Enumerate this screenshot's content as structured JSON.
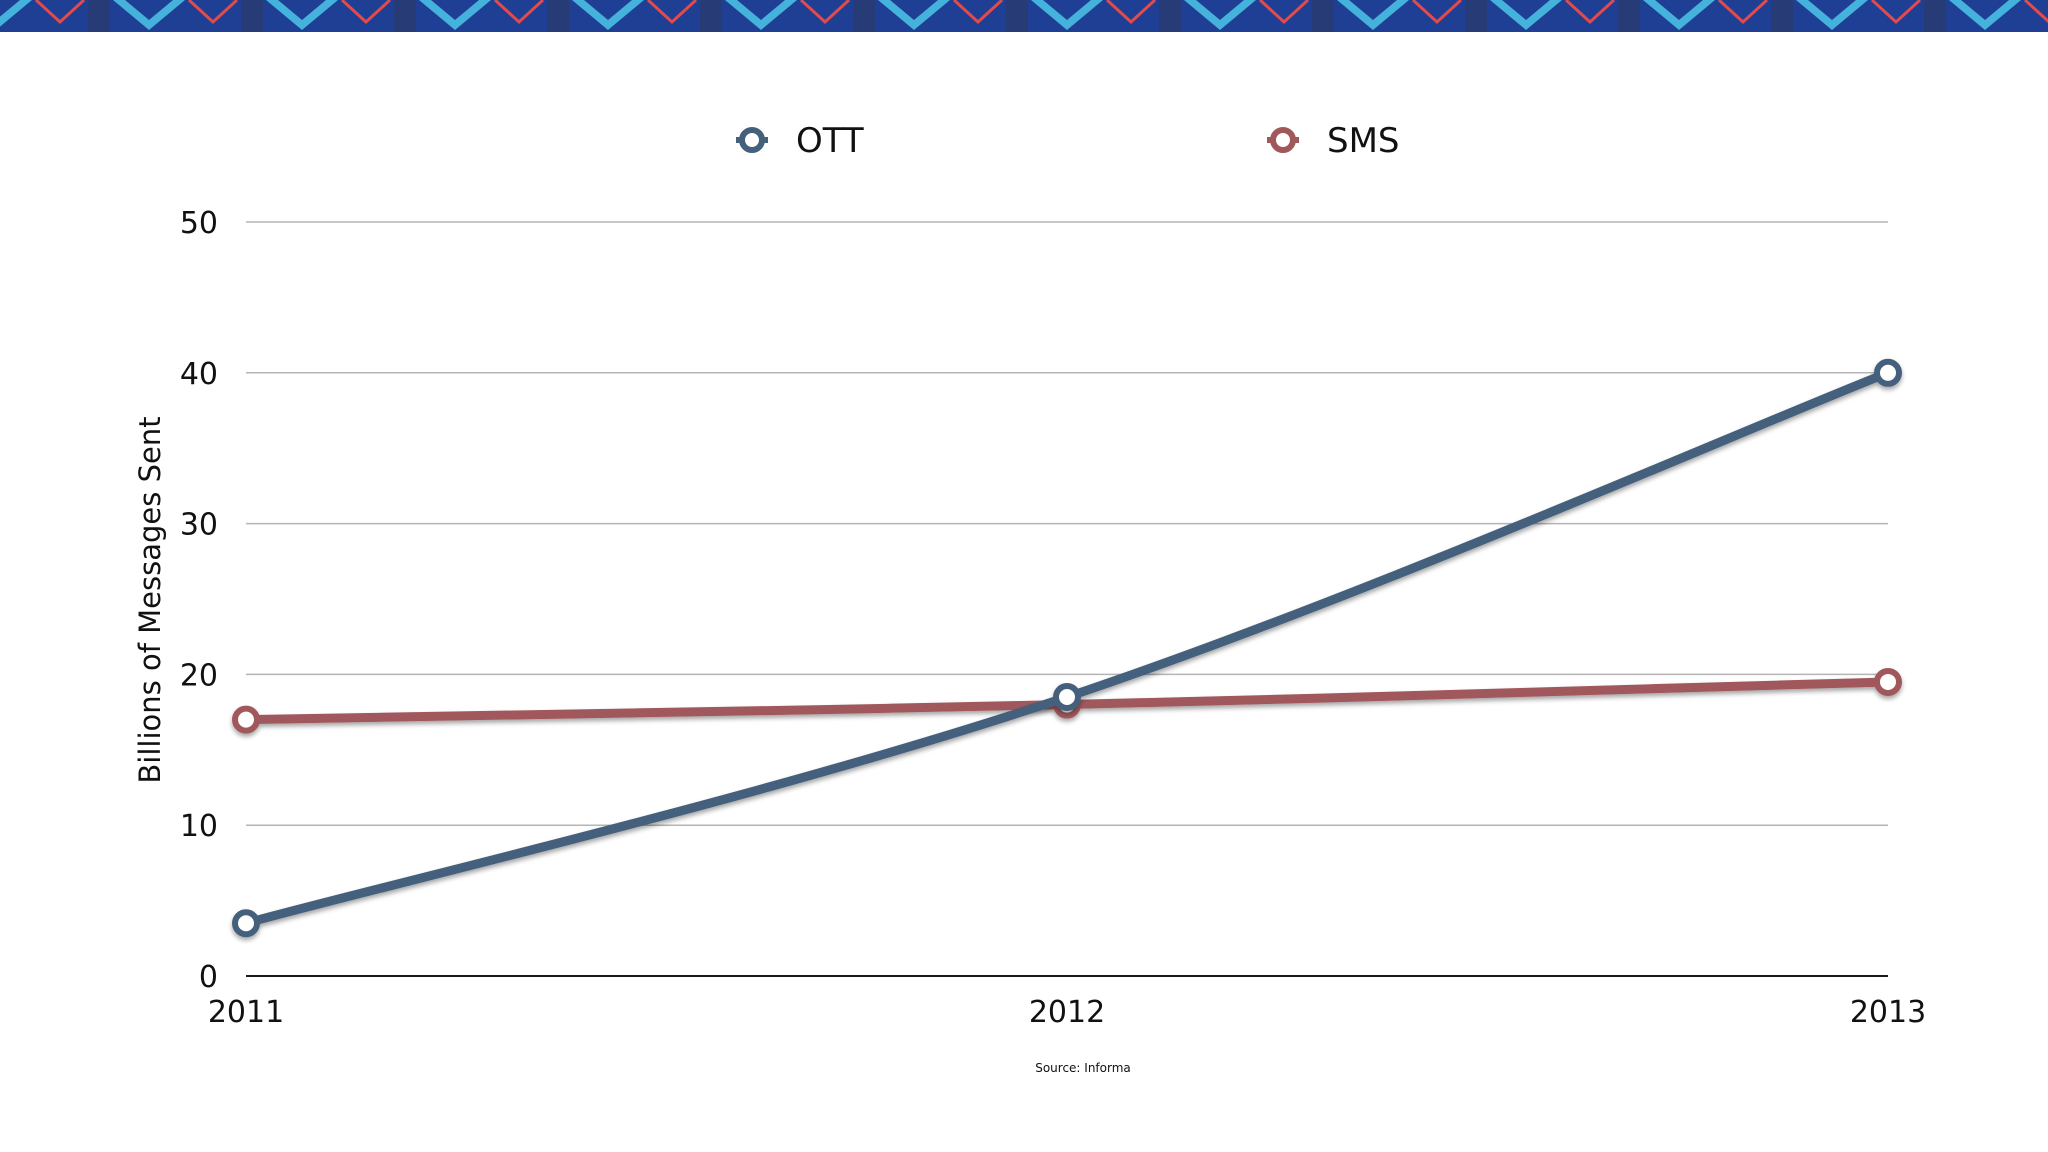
{
  "chart_data": {
    "type": "line",
    "categories": [
      "2011",
      "2012",
      "2013"
    ],
    "series": [
      {
        "name": "OTT",
        "values": [
          3.5,
          18.5,
          40
        ],
        "color": "#44607b"
      },
      {
        "name": "SMS",
        "values": [
          17,
          18,
          19.5
        ],
        "color": "#a0585b"
      }
    ],
    "y_ticks": [
      "0",
      "10",
      "20",
      "30",
      "40",
      "50"
    ],
    "ylim": [
      0,
      50
    ],
    "ylabel": "Billions of Messages Sent",
    "xlabel": "",
    "grid": true,
    "legend_position": "top",
    "source": "Source: Informa"
  },
  "banner": {
    "base_color": "#1f3f95",
    "accent_colors": [
      "#4cc7e8",
      "#e34a4a",
      "#2f3a5a"
    ]
  }
}
